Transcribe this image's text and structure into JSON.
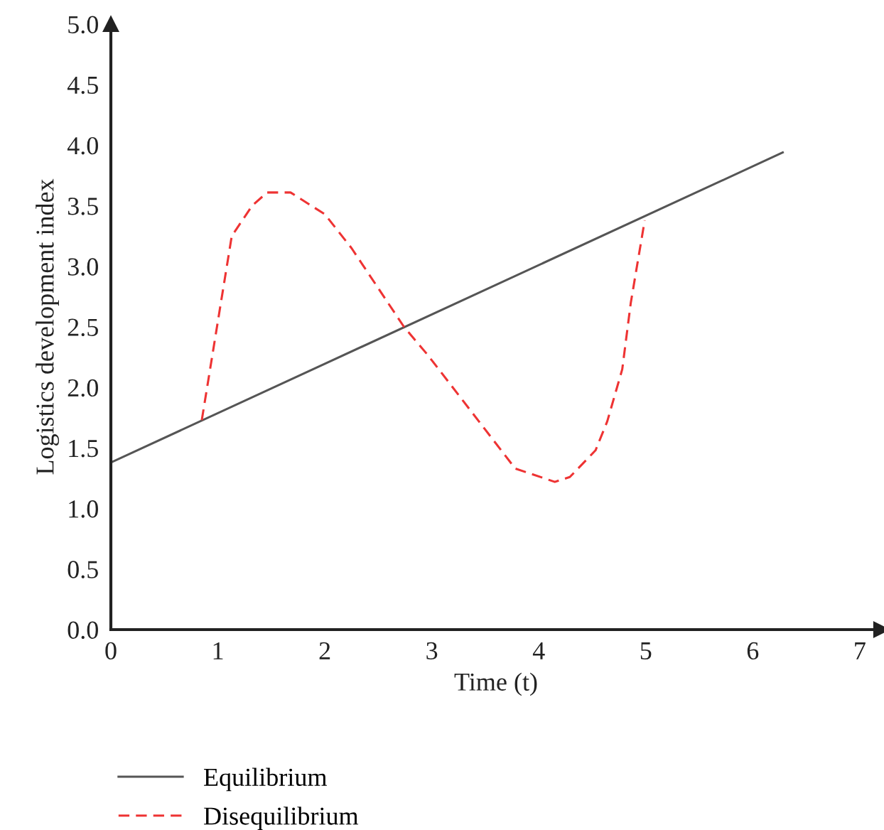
{
  "chart_data": {
    "type": "line",
    "xlabel": "Time (t)",
    "ylabel": "Logistics development index",
    "series": [
      {
        "name": "Equilibrium",
        "color": "#555555",
        "line_style": "solid",
        "x": [
          0,
          6.28
        ],
        "values": [
          1.38,
          3.94
        ]
      },
      {
        "name": "Disequilibrium",
        "color": "#ee3333",
        "line_style": "dashed",
        "x": [
          0.85,
          1.13,
          1.32,
          1.46,
          1.68,
          2.0,
          2.25,
          2.74,
          2.96,
          3.78,
          4.15,
          4.29,
          4.53,
          4.64,
          4.78,
          4.86,
          4.99
        ],
        "values": [
          1.73,
          3.25,
          3.5,
          3.61,
          3.61,
          3.43,
          3.15,
          2.5,
          2.27,
          1.33,
          1.22,
          1.26,
          1.48,
          1.72,
          2.15,
          2.7,
          3.38
        ]
      }
    ],
    "xlim": [
      0,
      7.2
    ],
    "ylim": [
      0,
      5.0
    ],
    "xticks": [
      0,
      1,
      2,
      3,
      4,
      5,
      6,
      7
    ],
    "yticks": [
      {
        "value": 0,
        "label": "0.0"
      },
      {
        "value": 0.5,
        "label": "0.5"
      },
      {
        "value": 1,
        "label": "1.0"
      },
      {
        "value": 1.5,
        "label": "1.5"
      },
      {
        "value": 2,
        "label": "2.0"
      },
      {
        "value": 2.5,
        "label": "2.5"
      },
      {
        "value": 3,
        "label": "3.0"
      },
      {
        "value": 3.5,
        "label": "3.5"
      },
      {
        "value": 4,
        "label": "4.0"
      },
      {
        "value": 4.5,
        "label": "4.5"
      },
      {
        "value": 5,
        "label": "5.0"
      }
    ],
    "grid": false,
    "legend": "bottom",
    "marker": "none"
  }
}
